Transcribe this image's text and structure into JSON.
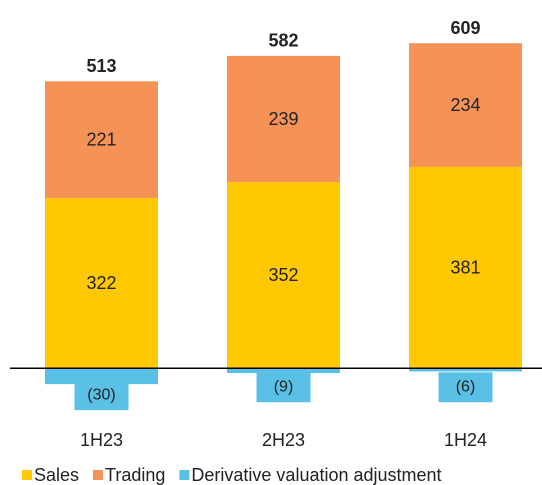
{
  "chart_data": {
    "type": "stacked_bar",
    "categories": [
      "1H23",
      "2H23",
      "1H24"
    ],
    "series": [
      {
        "name": "Sales",
        "color": "#FFC800",
        "values": [
          322,
          352,
          381
        ]
      },
      {
        "name": "Trading",
        "color": "#F79256",
        "values": [
          221,
          239,
          234
        ]
      },
      {
        "name": "Derivative valuation adjustment",
        "color": "#5BC0E6",
        "values": [
          -30,
          -9,
          -6
        ],
        "value_labels": [
          "(30)",
          "(9)",
          "(6)"
        ]
      }
    ],
    "totals": [
      513,
      582,
      609
    ],
    "ylim": [
      -60,
      640
    ]
  }
}
